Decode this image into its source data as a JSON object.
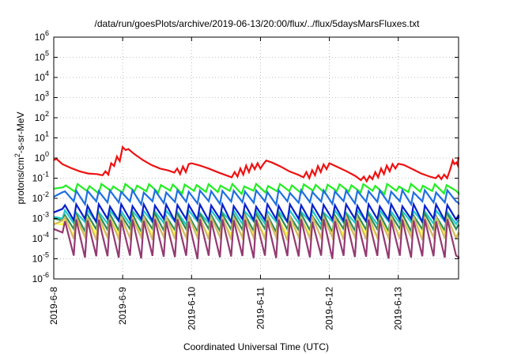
{
  "chart_data": {
    "type": "line",
    "title": "/data/run/goesPlots/archive/2019-06-13/20:00/flux/../flux/5daysMarsFluxes.txt",
    "xlabel": "Coordinated Universal Time (UTC)",
    "ylabel": "protons/cm²-s-sr-MeV",
    "ylabel_parts": {
      "pre": "protons/cm",
      "sup": "2",
      "post": "-s-sr-MeV"
    },
    "yscale": "log",
    "ylim": [
      -6,
      6
    ],
    "yticks": [
      {
        "base": "10",
        "exp": "-6"
      },
      {
        "base": "10",
        "exp": "-5"
      },
      {
        "base": "10",
        "exp": "-4"
      },
      {
        "base": "10",
        "exp": "-3"
      },
      {
        "base": "10",
        "exp": "-2"
      },
      {
        "base": "10",
        "exp": "-1"
      },
      {
        "base": "10",
        "exp": "0"
      },
      {
        "base": "10",
        "exp": "1"
      },
      {
        "base": "10",
        "exp": "2"
      },
      {
        "base": "10",
        "exp": "3"
      },
      {
        "base": "10",
        "exp": "4"
      },
      {
        "base": "10",
        "exp": "5"
      },
      {
        "base": "10",
        "exp": "6"
      }
    ],
    "xrange_days": [
      "2019-6-8",
      "2019-6-13 21:00"
    ],
    "xticks": [
      "2019-6-8",
      "2019-6-9",
      "2019-6-10",
      "2019-6-11",
      "2019-6-12",
      "2019-6-13"
    ],
    "grid": true,
    "legend": "none",
    "series": [
      {
        "color": "#ee1111",
        "points": [
          [
            "2019-6-8 00:00",
            0.8
          ],
          [
            "2019-6-8 01:00",
            0.9
          ],
          [
            "2019-6-8 03:00",
            0.5
          ],
          [
            "2019-6-8 06:00",
            0.32
          ],
          [
            "2019-6-8 09:00",
            0.22
          ],
          [
            "2019-6-8 12:00",
            0.17
          ],
          [
            "2019-6-8 15:00",
            0.16
          ],
          [
            "2019-6-8 17:00",
            0.14
          ],
          [
            "2019-6-8 18:00",
            0.22
          ],
          [
            "2019-6-8 19:00",
            0.15
          ],
          [
            "2019-6-8 20:00",
            0.55
          ],
          [
            "2019-6-8 21:00",
            0.4
          ],
          [
            "2019-6-8 22:00",
            1.2
          ],
          [
            "2019-6-8 23:00",
            0.7
          ],
          [
            "2019-6-9 00:00",
            3.5
          ],
          [
            "2019-6-9 01:00",
            2.5
          ],
          [
            "2019-6-9 02:00",
            2.8
          ],
          [
            "2019-6-9 04:00",
            1.6
          ],
          [
            "2019-6-9 07:00",
            0.8
          ],
          [
            "2019-6-9 10:00",
            0.45
          ],
          [
            "2019-6-9 13:00",
            0.3
          ],
          [
            "2019-6-9 16:00",
            0.24
          ],
          [
            "2019-6-9 18:00",
            0.19
          ],
          [
            "2019-6-9 19:00",
            0.3
          ],
          [
            "2019-6-9 20:00",
            0.16
          ],
          [
            "2019-6-9 21:00",
            0.38
          ],
          [
            "2019-6-9 22:00",
            0.2
          ],
          [
            "2019-6-9 23:00",
            0.5
          ],
          [
            "2019-6-10 00:00",
            0.55
          ],
          [
            "2019-6-10 03:00",
            0.42
          ],
          [
            "2019-6-10 06:00",
            0.3
          ],
          [
            "2019-6-10 09:00",
            0.2
          ],
          [
            "2019-6-10 12:00",
            0.14
          ],
          [
            "2019-6-10 14:00",
            0.11
          ],
          [
            "2019-6-10 15:00",
            0.2
          ],
          [
            "2019-6-10 16:00",
            0.12
          ],
          [
            "2019-6-10 17:00",
            0.3
          ],
          [
            "2019-6-10 18:00",
            0.15
          ],
          [
            "2019-6-10 19:00",
            0.42
          ],
          [
            "2019-6-10 20:00",
            0.2
          ],
          [
            "2019-6-10 21:00",
            0.5
          ],
          [
            "2019-6-10 22:00",
            0.28
          ],
          [
            "2019-6-10 23:00",
            0.55
          ],
          [
            "2019-6-11 00:00",
            0.3
          ],
          [
            "2019-6-11 01:00",
            0.5
          ],
          [
            "2019-6-11 02:00",
            0.75
          ],
          [
            "2019-6-11 04:00",
            0.6
          ],
          [
            "2019-6-11 07:00",
            0.38
          ],
          [
            "2019-6-11 10:00",
            0.22
          ],
          [
            "2019-6-11 13:00",
            0.15
          ],
          [
            "2019-6-11 15:00",
            0.11
          ],
          [
            "2019-6-11 16:00",
            0.2
          ],
          [
            "2019-6-11 17:00",
            0.1
          ],
          [
            "2019-6-11 18:00",
            0.25
          ],
          [
            "2019-6-11 19:00",
            0.14
          ],
          [
            "2019-6-11 20:00",
            0.4
          ],
          [
            "2019-6-11 21:00",
            0.2
          ],
          [
            "2019-6-11 22:00",
            0.48
          ],
          [
            "2019-6-11 23:00",
            0.28
          ],
          [
            "2019-6-12 00:00",
            0.55
          ],
          [
            "2019-6-12 03:00",
            0.35
          ],
          [
            "2019-6-12 06:00",
            0.22
          ],
          [
            "2019-6-12 09:00",
            0.13
          ],
          [
            "2019-6-12 11:00",
            0.08
          ],
          [
            "2019-6-12 12:00",
            0.12
          ],
          [
            "2019-6-12 13:00",
            0.07
          ],
          [
            "2019-6-12 14:00",
            0.13
          ],
          [
            "2019-6-12 15:00",
            0.09
          ],
          [
            "2019-6-12 16:00",
            0.2
          ],
          [
            "2019-6-12 17:00",
            0.11
          ],
          [
            "2019-6-12 18:00",
            0.3
          ],
          [
            "2019-6-12 19:00",
            0.16
          ],
          [
            "2019-6-12 20:00",
            0.42
          ],
          [
            "2019-6-12 21:00",
            0.22
          ],
          [
            "2019-6-12 22:00",
            0.5
          ],
          [
            "2019-6-12 23:00",
            0.3
          ],
          [
            "2019-6-13 00:00",
            0.52
          ],
          [
            "2019-6-13 02:00",
            0.45
          ],
          [
            "2019-6-13 05:00",
            0.28
          ],
          [
            "2019-6-13 08:00",
            0.17
          ],
          [
            "2019-6-13 11:00",
            0.12
          ],
          [
            "2019-6-13 13:00",
            0.1
          ],
          [
            "2019-6-13 14:00",
            0.14
          ],
          [
            "2019-6-13 15:00",
            0.09
          ],
          [
            "2019-6-13 16:00",
            0.15
          ],
          [
            "2019-6-13 17:00",
            0.1
          ],
          [
            "2019-6-13 18:00",
            0.25
          ],
          [
            "2019-6-13 19:00",
            0.75
          ],
          [
            "2019-6-13 19:30",
            0.5
          ],
          [
            "2019-6-13 20:15",
            0.6
          ],
          [
            "2019-6-13 20:40",
            0.45
          ],
          [
            "2019-6-13 21:00",
            1.1
          ]
        ]
      },
      {
        "color": "#22ee22",
        "hi": 0.045,
        "lo": 0.02,
        "cycles": 34,
        "start": [
          0.03,
          0.035
        ],
        "end": [
          0.018,
          0.02
        ]
      },
      {
        "color": "#1f6fe0",
        "hi": 0.022,
        "lo": 0.006,
        "cycles": 36,
        "start": [
          0.012,
          0.02
        ],
        "end": [
          0.006,
          0.005
        ]
      },
      {
        "color": "#22c8c8",
        "hi": 0.0022,
        "lo": 0.0006,
        "cycles": 36,
        "start": [
          0.0012,
          0.001
        ],
        "end": [
          0.0009,
          0.0007
        ]
      },
      {
        "color": "#0a1fcc",
        "hi": 0.0045,
        "lo": 0.0008,
        "cycles": 36,
        "start": [
          0.002,
          0.003
        ],
        "end": [
          0.0015,
          0.001
        ]
      },
      {
        "color": "#2e8b57",
        "hi": 0.0015,
        "lo": 0.00025,
        "cycles": 36,
        "start": [
          0.001,
          0.0008
        ],
        "end": [
          0.0005,
          0.0004
        ]
      },
      {
        "color": "#ffff33",
        "hi": 0.0009,
        "lo": 0.00013,
        "cycles": 36,
        "start": [
          0.0006,
          0.0005
        ],
        "end": [
          0.0002,
          0.0002
        ]
      },
      {
        "color": "#d4b96a",
        "hi": 0.0011,
        "lo": 0.0001,
        "cycles": 36,
        "start": [
          0.0005,
          0.0008
        ],
        "end": [
          0.0002,
          0.00015
        ]
      },
      {
        "color": "#933a72",
        "hi": 0.0008,
        "lo": 1.2e-05,
        "cycles": 36,
        "start": [
          0.0003,
          0.0002
        ],
        "end": [
          1.2e-05,
          1e-05
        ]
      }
    ]
  }
}
